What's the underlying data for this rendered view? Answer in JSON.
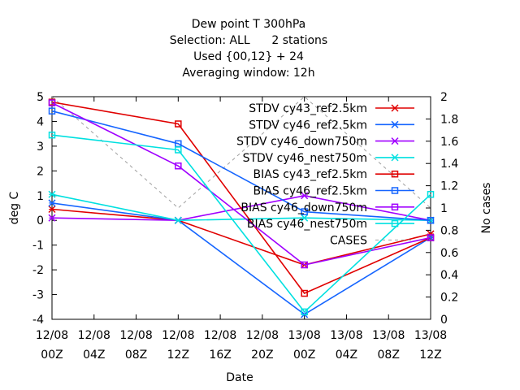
{
  "chart_data": {
    "type": "line",
    "title_lines": [
      "Dew point T 300hPa",
      "Selection: ALL      2 stations",
      "Used {00,12} + 24",
      "Averaging window: 12h"
    ],
    "xlabel": "Date",
    "ylabel": "deg C",
    "y2label": "No cases",
    "x_categories": [
      [
        "12/08",
        "00Z"
      ],
      [
        "12/08",
        "04Z"
      ],
      [
        "12/08",
        "08Z"
      ],
      [
        "12/08",
        "12Z"
      ],
      [
        "12/08",
        "16Z"
      ],
      [
        "12/08",
        "20Z"
      ],
      [
        "13/08",
        "00Z"
      ],
      [
        "13/08",
        "04Z"
      ],
      [
        "13/08",
        "08Z"
      ],
      [
        "13/08",
        "12Z"
      ]
    ],
    "ylim": [
      -4,
      5
    ],
    "y_ticks": [
      -4,
      -3,
      -2,
      -1,
      0,
      1,
      2,
      3,
      4,
      5
    ],
    "y2lim": [
      0,
      2
    ],
    "y2_ticks": [
      "0",
      "0.2",
      "0.4",
      "0.6",
      "0.8",
      "1",
      "1.2",
      "1.4",
      "1.6",
      "1.8",
      "2"
    ],
    "legend_position": "top-right",
    "series": [
      {
        "name": "STDV cy43_ref2.5km",
        "color": "#e00000",
        "marker": "x",
        "x": [
          0,
          3,
          6,
          9
        ],
        "y": [
          0.45,
          0.0,
          -1.8,
          -0.55
        ]
      },
      {
        "name": "STDV cy46_ref2.5km",
        "color": "#1565ff",
        "marker": "x",
        "x": [
          0,
          3,
          6,
          9
        ],
        "y": [
          0.7,
          0.0,
          -3.8,
          -0.7
        ]
      },
      {
        "name": "STDV cy46_down750m",
        "color": "#a000ff",
        "marker": "x",
        "x": [
          0,
          3,
          6,
          9
        ],
        "y": [
          0.1,
          0.0,
          1.0,
          0.0
        ]
      },
      {
        "name": "STDV cy46_nest750m",
        "color": "#00e0e0",
        "marker": "x",
        "x": [
          0,
          3,
          6,
          9
        ],
        "y": [
          1.05,
          0.0,
          0.1,
          0.0
        ]
      },
      {
        "name": "BIAS cy43_ref2.5km",
        "color": "#e00000",
        "marker": "square",
        "x": [
          0,
          3,
          6,
          9
        ],
        "y": [
          4.78,
          3.9,
          -2.95,
          -0.7
        ]
      },
      {
        "name": "BIAS cy46_ref2.5km",
        "color": "#1565ff",
        "marker": "square",
        "x": [
          0,
          3,
          6,
          9
        ],
        "y": [
          4.42,
          3.1,
          0.35,
          0.0
        ]
      },
      {
        "name": "BIAS cy46_down750m",
        "color": "#a000ff",
        "marker": "square",
        "x": [
          0,
          3,
          6,
          9
        ],
        "y": [
          4.75,
          2.2,
          -1.8,
          -0.7
        ]
      },
      {
        "name": "BIAS cy46_nest750m",
        "color": "#00e0e0",
        "marker": "square",
        "x": [
          0,
          3,
          6,
          9
        ],
        "y": [
          3.45,
          2.85,
          -3.7,
          1.05
        ]
      }
    ],
    "cases": {
      "name": "CASES",
      "color": "#a0a0a0",
      "dash": "4,4",
      "axis": "y2",
      "x": [
        0,
        3,
        6,
        9
      ],
      "y": [
        2,
        1,
        2,
        1
      ]
    }
  }
}
